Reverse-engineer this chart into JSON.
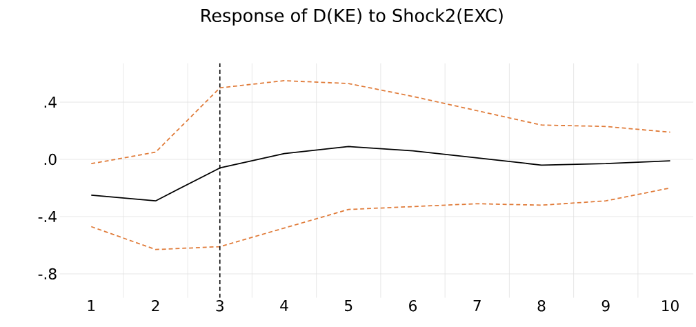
{
  "chart_data": {
    "type": "line",
    "title": "Response of D(KE) to Shock2(EXC)",
    "categories": [
      "1",
      "2",
      "3",
      "4",
      "5",
      "6",
      "7",
      "8",
      "9",
      "10"
    ],
    "series": [
      {
        "color": "#000000",
        "line_style": "solid",
        "values": [
          -0.25,
          -0.29,
          -0.06,
          0.04,
          0.09,
          0.06,
          0.01,
          -0.04,
          -0.03,
          -0.01
        ]
      },
      {
        "color": "#e07b39",
        "line_style": "dashed",
        "values": [
          -0.03,
          0.05,
          0.5,
          0.55,
          0.53,
          0.44,
          0.34,
          0.24,
          0.23,
          0.19
        ]
      },
      {
        "color": "#e07b39",
        "line_style": "dashed",
        "values": [
          -0.47,
          -0.63,
          -0.61,
          -0.48,
          -0.35,
          -0.33,
          -0.31,
          -0.32,
          -0.29,
          -0.2
        ]
      }
    ],
    "ylim": [
      -0.967,
      0.671
    ],
    "yticks": [
      {
        "value": -0.8,
        "label": "-.8"
      },
      {
        "value": -0.4,
        "label": "-.4"
      },
      {
        "value": 0.0,
        "label": ".0"
      },
      {
        "value": 0.4,
        "label": ".4"
      }
    ],
    "grid": true,
    "ref_lines": [
      {
        "axis": "x",
        "value": "3",
        "color": "#000000",
        "line_style": "dashed"
      }
    ]
  }
}
